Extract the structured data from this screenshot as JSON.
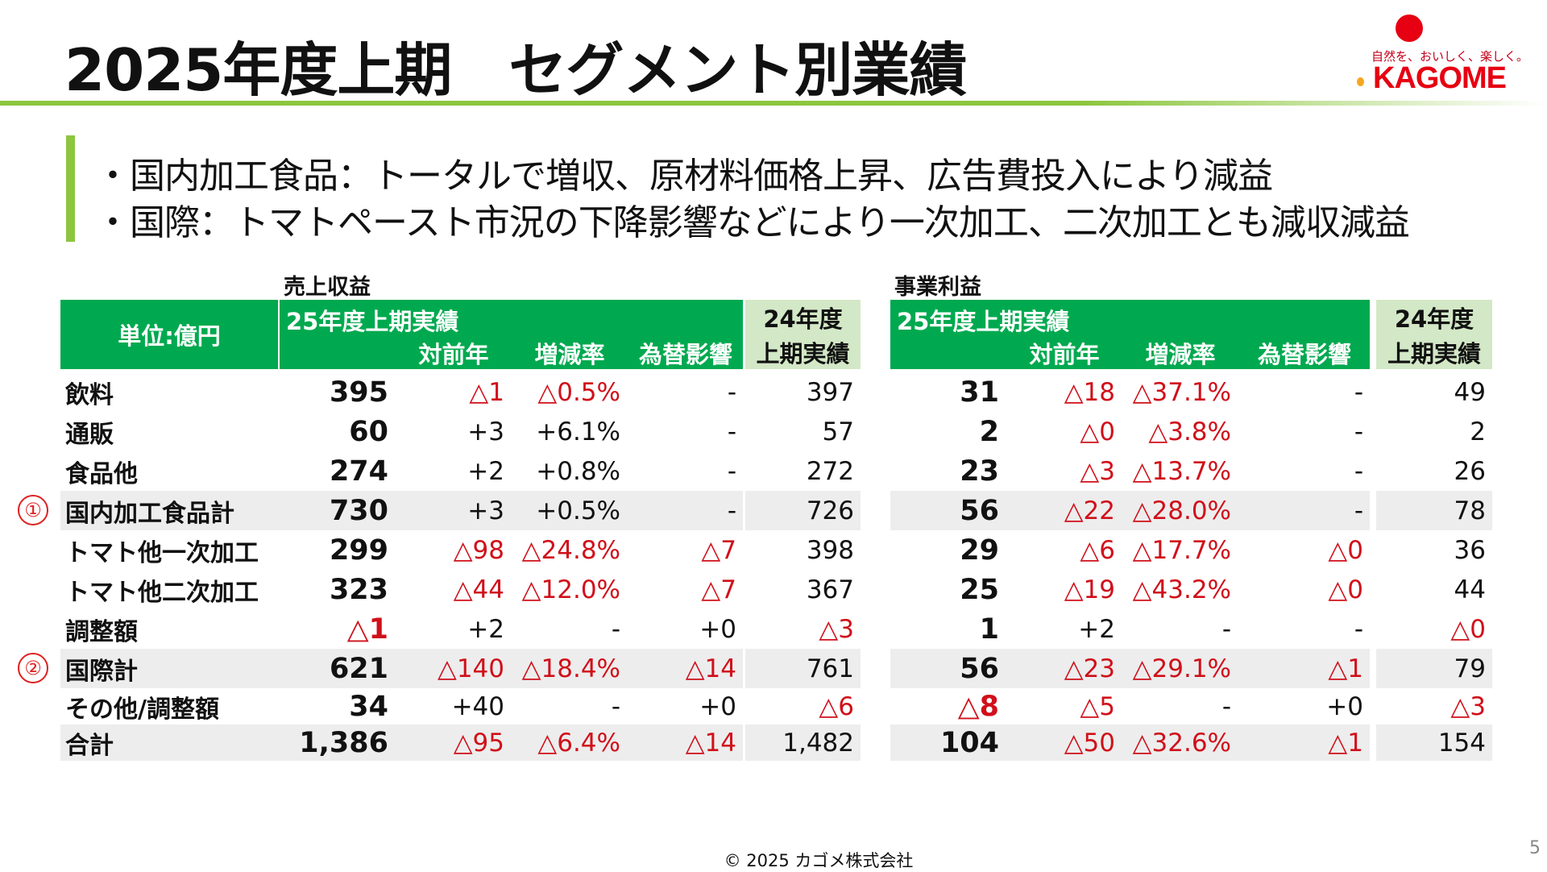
{
  "title": "2025年度上期　セグメント別業績",
  "logo": {
    "tagline": "自然を、おいしく、楽しく。",
    "name": "KAGOME",
    "brand_color": "#e60012"
  },
  "bullets": [
    "・国内加工食品：トータルで増収、原材料価格上昇、広告費投入により減益",
    "・国際：トマトペースト市況の下降影響などにより一次加工、二次加工とも減収減益"
  ],
  "sections": {
    "sales": "売上収益",
    "profit": "事業利益"
  },
  "header": {
    "unit": "単位:億円",
    "current": "25年度上期実績",
    "yoy": "対前年",
    "rate": "増減率",
    "fx": "為替影響",
    "prev_line1": "24年度",
    "prev_line2": "上期実績"
  },
  "colors": {
    "header_green": "#00a94f",
    "prev_header": "#d3e8c6",
    "negative": "#d0101a",
    "accent_bar": "#8cc63f"
  },
  "rows": [
    {
      "label": "飲料",
      "marker": "",
      "highlight": false,
      "sales": [
        "395",
        "△1",
        "△0.5%",
        "-",
        "397"
      ],
      "profit": [
        "31",
        "△18",
        "△37.1%",
        "-",
        "49"
      ]
    },
    {
      "label": "通販",
      "marker": "",
      "highlight": false,
      "sales": [
        "60",
        "+3",
        "+6.1%",
        "-",
        "57"
      ],
      "profit": [
        "2",
        "△0",
        "△3.8%",
        "-",
        "2"
      ]
    },
    {
      "label": "食品他",
      "marker": "",
      "highlight": false,
      "sales": [
        "274",
        "+2",
        "+0.8%",
        "-",
        "272"
      ],
      "profit": [
        "23",
        "△3",
        "△13.7%",
        "-",
        "26"
      ]
    },
    {
      "label": "国内加工食品計",
      "marker": "①",
      "highlight": true,
      "sales": [
        "730",
        "+3",
        "+0.5%",
        "-",
        "726"
      ],
      "profit": [
        "56",
        "△22",
        "△28.0%",
        "-",
        "78"
      ]
    },
    {
      "label": "トマト他一次加工",
      "marker": "",
      "highlight": false,
      "sales": [
        "299",
        "△98",
        "△24.8%",
        "△7",
        "398"
      ],
      "profit": [
        "29",
        "△6",
        "△17.7%",
        "△0",
        "36"
      ]
    },
    {
      "label": "トマト他二次加工",
      "marker": "",
      "highlight": false,
      "sales": [
        "323",
        "△44",
        "△12.0%",
        "△7",
        "367"
      ],
      "profit": [
        "25",
        "△19",
        "△43.2%",
        "△0",
        "44"
      ]
    },
    {
      "label": "調整額",
      "marker": "",
      "highlight": false,
      "sales": [
        "△1",
        "+2",
        "-",
        "+0",
        "△3"
      ],
      "profit": [
        "1",
        "+2",
        "-",
        "-",
        "△0"
      ]
    },
    {
      "label": "国際計",
      "marker": "②",
      "highlight": true,
      "sales": [
        "621",
        "△140",
        "△18.4%",
        "△14",
        "761"
      ],
      "profit": [
        "56",
        "△23",
        "△29.1%",
        "△1",
        "79"
      ]
    },
    {
      "label": "その他/調整額",
      "marker": "",
      "highlight": false,
      "sales": [
        "34",
        "+40",
        "-",
        "+0",
        "△6"
      ],
      "profit": [
        "△8",
        "△5",
        "-",
        "+0",
        "△3"
      ]
    },
    {
      "label": "合計",
      "marker": "",
      "highlight": true,
      "sales": [
        "1,386",
        "△95",
        "△6.4%",
        "△14",
        "1,482"
      ],
      "profit": [
        "104",
        "△50",
        "△32.6%",
        "△1",
        "154"
      ]
    }
  ],
  "footer": "©  2025  カゴメ株式会社",
  "page_number": "5"
}
